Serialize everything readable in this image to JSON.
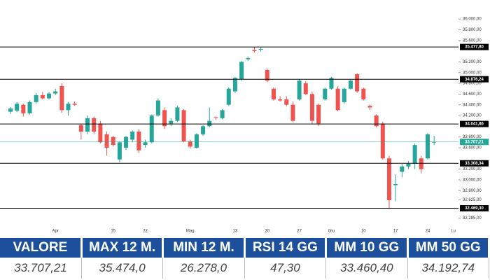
{
  "chart_data": {
    "type": "candlestick",
    "x": [
      null,
      null,
      null,
      null,
      null,
      null,
      null,
      "Apr",
      null,
      null,
      null,
      null,
      null,
      null,
      null,
      null,
      "15",
      null,
      null,
      null,
      null,
      "22",
      null,
      null,
      null,
      null,
      null,
      null,
      "Mag",
      null,
      null,
      null,
      null,
      null,
      null,
      "13",
      null,
      null,
      null,
      null,
      "20",
      null,
      null,
      null,
      null,
      "27",
      null,
      null,
      null,
      null,
      "Giu",
      null,
      null,
      null,
      null,
      "10",
      null,
      null,
      null,
      null,
      "17",
      null,
      null,
      null,
      null,
      "24",
      null,
      null,
      null,
      "Lu"
    ],
    "series": [
      {
        "up_color": "#26a69a",
        "down_color": "#ef5350",
        "open": [
          34270,
          34290,
          34400,
          34240,
          34450,
          34580,
          34520,
          34610,
          34750,
          34300,
          34420,
          34020,
          33900,
          34150,
          34050,
          33850,
          33800,
          33380,
          33600,
          33750,
          33900,
          33650,
          33700,
          34200,
          34300,
          34050,
          34100,
          34300,
          33720,
          33600,
          33850,
          34000,
          34170,
          34150,
          34400,
          34650,
          34880,
          35250,
          35420,
          35430,
          35050,
          34700,
          34500,
          34500,
          34400,
          34500,
          34800,
          34600,
          34400,
          34500,
          34700,
          34700,
          34450,
          34700,
          34970,
          34700,
          34380,
          34200,
          34050,
          33400,
          32900,
          33150,
          33250,
          33300,
          33400,
          33400,
          33700,
          null,
          null,
          null
        ],
        "high": [
          34360,
          34450,
          34420,
          34480,
          34620,
          34640,
          34640,
          34700,
          34800,
          34450,
          34460,
          34050,
          34200,
          34180,
          34100,
          33900,
          33820,
          33720,
          33820,
          33920,
          33950,
          33750,
          34220,
          34520,
          34350,
          34150,
          34380,
          34320,
          33750,
          33870,
          34020,
          34350,
          34180,
          34320,
          34720,
          34920,
          35220,
          35300,
          35480,
          35470,
          35080,
          34720,
          34560,
          34560,
          34460,
          34880,
          34840,
          34650,
          34420,
          34720,
          34920,
          34750,
          34720,
          34880,
          34990,
          34720,
          34400,
          34220,
          34080,
          33450,
          33100,
          33300,
          33350,
          33680,
          33450,
          33870,
          33820,
          null,
          null,
          null
        ],
        "low": [
          34230,
          34260,
          34180,
          34220,
          34420,
          34500,
          34500,
          34580,
          34250,
          34200,
          34380,
          33750,
          33850,
          33850,
          33680,
          33450,
          33620,
          33330,
          33560,
          33700,
          33500,
          33600,
          33680,
          34180,
          33950,
          34000,
          34080,
          33700,
          33580,
          33580,
          33820,
          33980,
          34120,
          34130,
          34380,
          34620,
          34850,
          35220,
          35380,
          35390,
          34820,
          34480,
          34460,
          34370,
          34080,
          34480,
          34580,
          34050,
          34000,
          34480,
          34680,
          34280,
          34420,
          34680,
          34620,
          34480,
          34300,
          33980,
          33380,
          32470,
          32600,
          33050,
          33200,
          33200,
          33120,
          33380,
          33650,
          null,
          null,
          null
        ],
        "close": [
          34330,
          34420,
          34240,
          34450,
          34580,
          34520,
          34610,
          34650,
          34300,
          34420,
          34400,
          33900,
          34150,
          33900,
          33700,
          33600,
          33650,
          33700,
          33800,
          33900,
          33550,
          33700,
          34200,
          34480,
          34000,
          34100,
          34350,
          33720,
          33620,
          33850,
          34000,
          34100,
          34160,
          34300,
          34700,
          34900,
          35200,
          35270,
          35400,
          35440,
          34850,
          34500,
          34480,
          34400,
          34100,
          34850,
          34600,
          34100,
          34050,
          34700,
          34900,
          34300,
          34700,
          34850,
          34650,
          34500,
          34350,
          34000,
          33400,
          32620,
          32920,
          33250,
          33300,
          33650,
          33200,
          33850,
          33707.21,
          null,
          null,
          null
        ]
      }
    ],
    "ylim": [
      32150,
      36250
    ],
    "yticks": [
      {
        "value": 36000,
        "label": "36.000,00"
      },
      {
        "value": 35800,
        "label": "35.800,00"
      },
      {
        "value": 35600,
        "label": "35.600,00"
      },
      {
        "value": 35200,
        "label": "35.200,00"
      },
      {
        "value": 35000,
        "label": "35.000,00"
      },
      {
        "value": 34800,
        "label": "34.800,00"
      },
      {
        "value": 34600,
        "label": "34.600,00"
      },
      {
        "value": 34400,
        "label": "34.400,00"
      },
      {
        "value": 34200,
        "label": "34.200,00"
      },
      {
        "value": 33800,
        "label": "33.800,00"
      },
      {
        "value": 33600,
        "label": "33.600,00"
      },
      {
        "value": 33200,
        "label": "33.200,00"
      },
      {
        "value": 33000,
        "label": "33.000,00"
      },
      {
        "value": 32800,
        "label": "32.800,00"
      },
      {
        "value": 32625,
        "label": "32.625,00"
      },
      {
        "value": 32285,
        "label": "32.285,00"
      }
    ],
    "levels": [
      {
        "value": 35477.8,
        "label": "35.477,80"
      },
      {
        "value": 34876.24,
        "label": "34.876,24"
      },
      {
        "value": 34041.86,
        "label": "34.041,86"
      },
      {
        "value": 33308.34,
        "label": "33.308,34"
      },
      {
        "value": 32469.3,
        "label": "32.469,30"
      }
    ],
    "level_color": "#000000",
    "last": {
      "value": 33707.21,
      "label": "33.707,21",
      "color": "#26a69a"
    }
  },
  "table": {
    "headers": [
      "VALORE",
      "MAX 12 M.",
      "MIN 12 M.",
      "RSI 14 GG",
      "MM 10 GG",
      "MM 50 GG"
    ],
    "values": [
      "33.707,21",
      "35.474,0",
      "26.278,0",
      "47,30",
      "33.460,40",
      "34.192,74"
    ]
  }
}
